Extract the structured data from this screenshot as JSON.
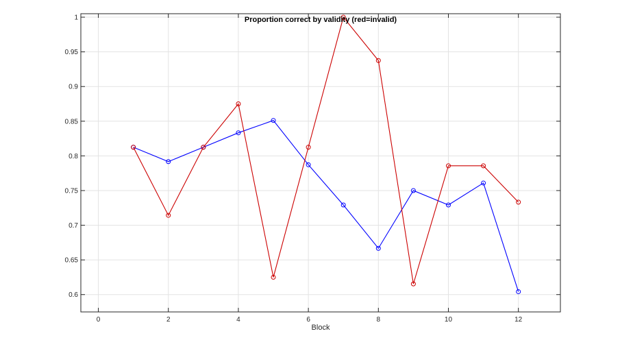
{
  "chart_data": {
    "type": "line",
    "title": "Proportion correct by validity (red=invalid)",
    "xlabel": "Block",
    "ylabel": "",
    "xlim": [
      -0.5,
      13.2
    ],
    "ylim": [
      0.575,
      1.005
    ],
    "x_ticks": [
      0,
      2,
      4,
      6,
      8,
      10,
      12
    ],
    "x_tick_labels": [
      "0",
      "2",
      "4",
      "6",
      "8",
      "10",
      "12"
    ],
    "y_ticks": [
      0.6,
      0.65,
      0.7,
      0.75,
      0.8,
      0.85,
      0.9,
      0.95,
      1.0
    ],
    "y_tick_labels": [
      "0.6",
      "0.65",
      "0.7",
      "0.75",
      "0.8",
      "0.85",
      "0.9",
      "0.95",
      "1"
    ],
    "grid": true,
    "x": [
      1,
      2,
      3,
      4,
      5,
      6,
      7,
      8,
      9,
      10,
      11,
      12
    ],
    "series": [
      {
        "color": "#0000ff",
        "marker": "circle",
        "values": [
          0.8125,
          0.7917,
          0.8125,
          0.8333,
          0.8511,
          0.7872,
          0.7292,
          0.6667,
          0.75,
          0.7292,
          0.7609,
          0.6042
        ]
      },
      {
        "color": "#cc0000",
        "marker": "circle",
        "values": [
          0.8125,
          0.7143,
          0.8125,
          0.875,
          0.625,
          0.8125,
          1.0,
          0.9375,
          0.6154,
          0.7857,
          0.7857,
          0.7333
        ]
      }
    ]
  }
}
